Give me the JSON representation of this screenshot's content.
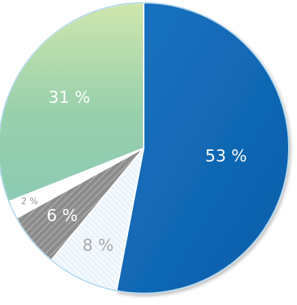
{
  "chart_data": {
    "type": "pie",
    "start_angle_deg": 0,
    "direction": "clockwise",
    "slices": [
      {
        "label": "53 %",
        "value": 53,
        "fill": "#0d67b6",
        "pattern": "solid",
        "label_color": "#ffffff",
        "label_size": "large"
      },
      {
        "label": "8 %",
        "value": 8,
        "fill": "#eef6fd",
        "pattern": "light-hatch",
        "label_color": "#a9a9a9",
        "label_size": "large"
      },
      {
        "label": "6 %",
        "value": 6,
        "fill": "#8c8c8c",
        "pattern": "dark-hatch",
        "label_color": "#ffffff",
        "label_size": "large"
      },
      {
        "label": "2 %",
        "value": 2,
        "fill": "#ffffff",
        "pattern": "solid",
        "label_color": "#9a9a9a",
        "label_size": "small"
      },
      {
        "label": "31 %",
        "value": 31,
        "fill": "#a8d6a8",
        "pattern": "gradient-green",
        "label_color": "#ffffff",
        "label_size": "large"
      }
    ],
    "outline_color": "#86c1e6"
  }
}
